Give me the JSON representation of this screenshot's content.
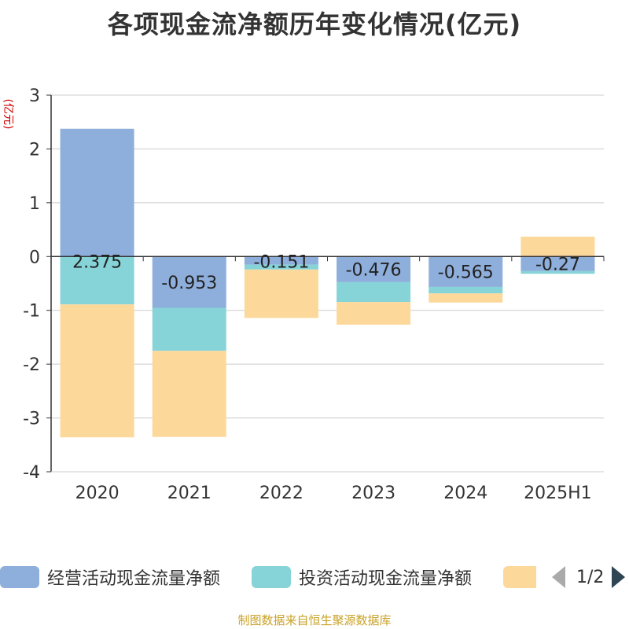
{
  "title": "各项现金流净额历年变化情况(亿元)",
  "source": "制图数据来自恒生聚源数据库",
  "colors": {
    "operating": "#8eaedb",
    "investing": "#86d4d8",
    "financing": "#fdd89b",
    "unit": "#cc0000"
  },
  "legend": {
    "items": [
      "经营活动现金流量净额",
      "投资活动现金流量净额",
      ""
    ],
    "page": "1/2"
  },
  "chart_data": {
    "type": "bar",
    "stacked": true,
    "ylabel": "(亿元)",
    "ylim": [
      -4,
      3
    ],
    "yticks": [
      3,
      2,
      1,
      0,
      -1,
      -2,
      -3,
      -4
    ],
    "categories": [
      "2020",
      "2021",
      "2022",
      "2023",
      "2024",
      "2025H1"
    ],
    "series": [
      {
        "name": "经营活动现金流量净额",
        "values": [
          2.375,
          -0.953,
          -0.151,
          -0.476,
          -0.565,
          -0.27
        ],
        "labels": [
          "2.375",
          "-0.953",
          "-0.151",
          "-0.476",
          "-0.565",
          "-0.27"
        ]
      },
      {
        "name": "投资活动现金流量净额",
        "values": [
          -0.89,
          -0.8,
          -0.09,
          -0.37,
          -0.12,
          -0.05
        ]
      },
      {
        "name": "",
        "values": [
          -2.47,
          -1.6,
          -0.9,
          -0.42,
          -0.17,
          0.37
        ]
      }
    ],
    "grid": true,
    "legend_position": "bottom"
  }
}
